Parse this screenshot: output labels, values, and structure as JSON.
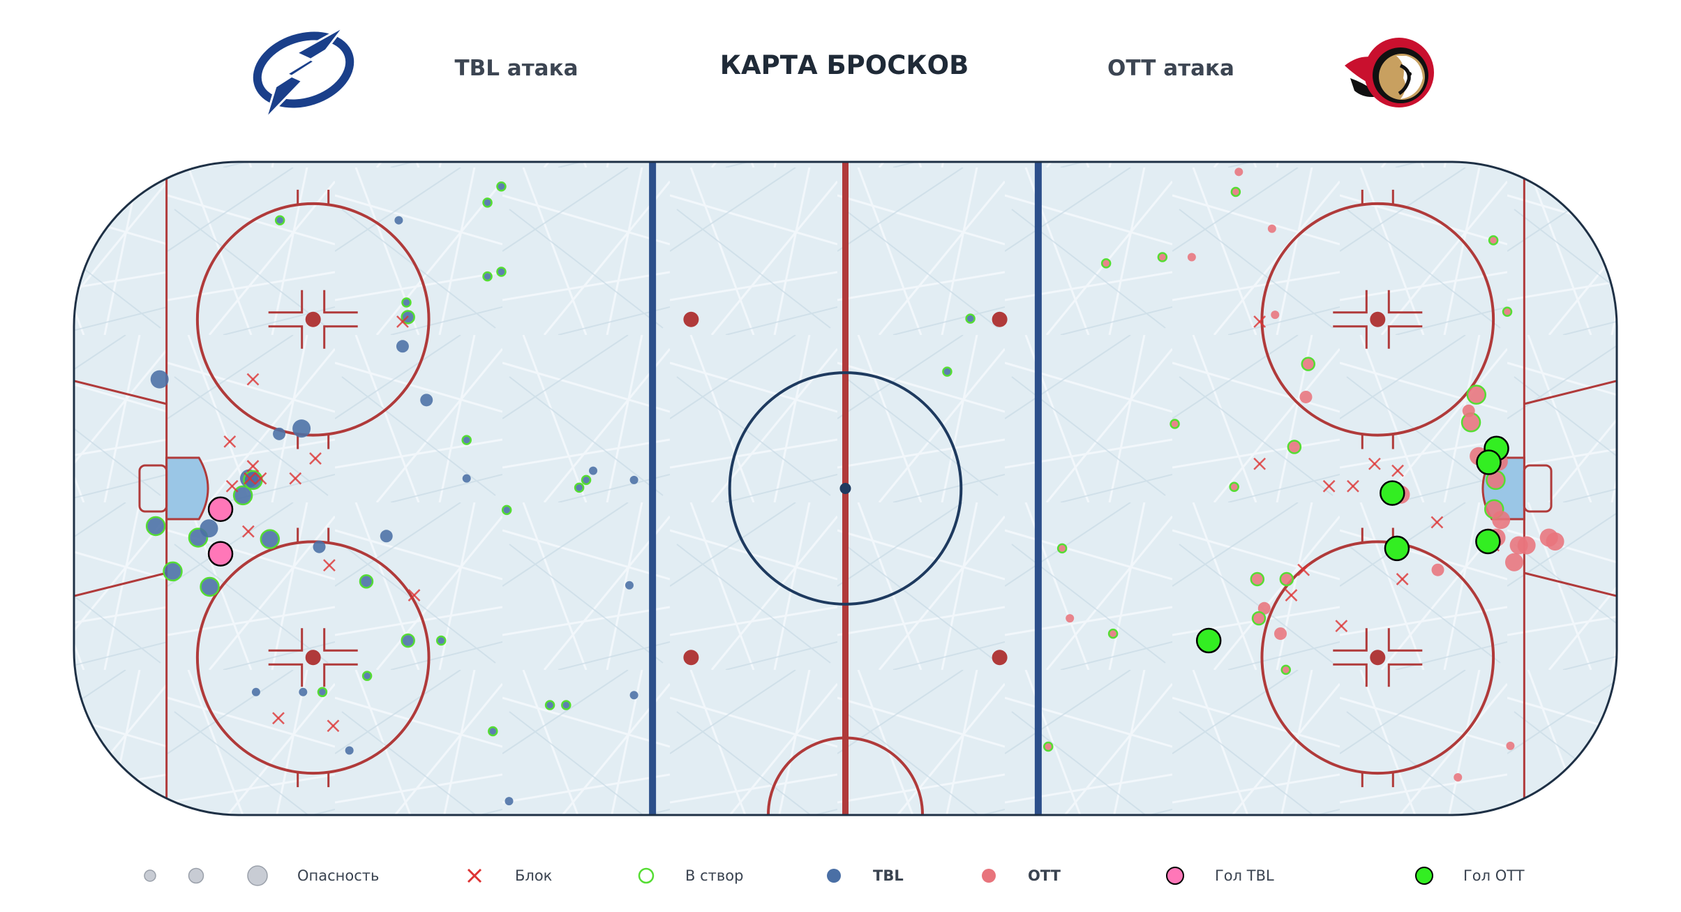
{
  "header": {
    "title": "КАРТА БРОСКОВ",
    "home_label": "TBL атака",
    "away_label": "OTT атака"
  },
  "colors": {
    "tbl": "#4a6fa5",
    "ott": "#e8747c",
    "on_target": "#55dd33",
    "block": "#dd3333",
    "goal_tbl": "#ff77b8",
    "goal_ott": "#33ee22"
  },
  "icons": {
    "home_logo": "lightning-bolt-logo",
    "away_logo": "spartan-helmet-logo"
  },
  "legend": {
    "danger": "Опасность",
    "block": "Блок",
    "on_target": "В створ",
    "tbl": "TBL",
    "ott": "OTT",
    "goal_tbl": "Гол TBL",
    "goal_ott": "Гол OTT"
  },
  "chart_data": {
    "type": "scatter",
    "title": "КАРТА БРОСКОВ",
    "xlim": [
      -100,
      100
    ],
    "ylim": [
      -42.5,
      42.5
    ],
    "xlabel": "",
    "ylabel": "",
    "grid": false,
    "legend_position": "bottom",
    "series": [
      {
        "name": "TBL",
        "color": "#4a6fa5",
        "points": [
          {
            "x": -89.4,
            "y": -4.9,
            "size": 2,
            "on_target": true
          },
          {
            "x": -87.2,
            "y": -10.8,
            "size": 2,
            "on_target": true
          },
          {
            "x": -83.9,
            "y": -6.4,
            "size": 2,
            "on_target": true
          },
          {
            "x": -82.5,
            "y": -5.2,
            "size": 2,
            "on_target": false
          },
          {
            "x": -82.4,
            "y": -12.8,
            "size": 2,
            "on_target": true
          },
          {
            "x": -78.1,
            "y": -0.9,
            "size": 2,
            "on_target": true
          },
          {
            "x": -77.3,
            "y": 1.3,
            "size": 2,
            "on_target": false
          },
          {
            "x": -76.8,
            "y": 1.1,
            "size": 2,
            "on_target": true
          },
          {
            "x": -74.6,
            "y": -6.6,
            "size": 2,
            "on_target": true
          },
          {
            "x": -73.4,
            "y": 7.1,
            "size": 1,
            "on_target": false
          },
          {
            "x": -68.2,
            "y": -7.6,
            "size": 1,
            "on_target": false
          },
          {
            "x": -67.8,
            "y": -26.5,
            "size": 0,
            "on_target": true
          },
          {
            "x": -73.3,
            "y": 34.9,
            "size": 0,
            "on_target": true
          },
          {
            "x": -70.3,
            "y": -26.5,
            "size": 0,
            "on_target": false
          },
          {
            "x": -76.4,
            "y": -26.5,
            "size": 0,
            "on_target": false
          },
          {
            "x": -70.5,
            "y": 7.8,
            "size": 2,
            "on_target": false
          },
          {
            "x": -88.9,
            "y": 14.2,
            "size": 2,
            "on_target": false
          },
          {
            "x": -59.5,
            "y": -6.2,
            "size": 1,
            "on_target": false
          },
          {
            "x": -62.0,
            "y": -24.4,
            "size": 0,
            "on_target": true
          },
          {
            "x": -64.3,
            "y": -34.1,
            "size": 0,
            "on_target": false
          },
          {
            "x": -62.1,
            "y": -12.1,
            "size": 1,
            "on_target": true
          },
          {
            "x": -56.7,
            "y": -19.8,
            "size": 1,
            "on_target": true
          },
          {
            "x": -56.7,
            "y": 22.3,
            "size": 1,
            "on_target": true
          },
          {
            "x": -56.9,
            "y": 24.2,
            "size": 0,
            "on_target": true
          },
          {
            "x": -57.4,
            "y": 18.5,
            "size": 1,
            "on_target": false
          },
          {
            "x": -54.3,
            "y": 11.5,
            "size": 1,
            "on_target": false
          },
          {
            "x": -57.9,
            "y": 34.9,
            "size": 0,
            "on_target": false
          },
          {
            "x": -52.4,
            "y": -19.8,
            "size": 0,
            "on_target": true
          },
          {
            "x": -49.1,
            "y": 6.3,
            "size": 0,
            "on_target": true
          },
          {
            "x": -49.1,
            "y": 1.3,
            "size": 0,
            "on_target": false
          },
          {
            "x": -46.4,
            "y": 27.6,
            "size": 0,
            "on_target": true
          },
          {
            "x": -44.6,
            "y": 39.3,
            "size": 0,
            "on_target": true
          },
          {
            "x": -46.4,
            "y": 37.2,
            "size": 0,
            "on_target": true
          },
          {
            "x": -44.6,
            "y": 28.2,
            "size": 0,
            "on_target": true
          },
          {
            "x": -45.7,
            "y": -31.6,
            "size": 0,
            "on_target": true
          },
          {
            "x": -43.9,
            "y": -2.8,
            "size": 0,
            "on_target": true
          },
          {
            "x": -38.3,
            "y": -28.2,
            "size": 0,
            "on_target": true
          },
          {
            "x": -36.2,
            "y": -28.2,
            "size": 0,
            "on_target": true
          },
          {
            "x": -34.5,
            "y": 0.1,
            "size": 0,
            "on_target": true
          },
          {
            "x": -33.6,
            "y": 1.1,
            "size": 0,
            "on_target": true
          },
          {
            "x": -32.7,
            "y": 2.3,
            "size": 0,
            "on_target": false
          },
          {
            "x": -28.0,
            "y": -12.6,
            "size": 0,
            "on_target": false
          },
          {
            "x": -27.4,
            "y": 1.1,
            "size": 0,
            "on_target": false
          },
          {
            "x": -27.4,
            "y": -26.9,
            "size": 0,
            "on_target": false
          },
          {
            "x": -43.6,
            "y": -40.7,
            "size": 0,
            "on_target": false
          },
          {
            "x": 16.2,
            "y": 22.1,
            "size": 0,
            "on_target": true
          },
          {
            "x": 13.2,
            "y": 15.2,
            "size": 0,
            "on_target": true
          }
        ]
      },
      {
        "name": "OTT",
        "color": "#e8747c",
        "points": [
          {
            "x": 83.4,
            "y": -6.4,
            "size": 2,
            "on_target": false
          },
          {
            "x": 84.1,
            "y": -2.7,
            "size": 2,
            "on_target": true
          },
          {
            "x": 84.3,
            "y": 1.1,
            "size": 2,
            "on_target": true
          },
          {
            "x": 84.7,
            "y": 3.5,
            "size": 2,
            "on_target": false
          },
          {
            "x": 82.1,
            "y": 4.2,
            "size": 2,
            "on_target": false
          },
          {
            "x": 81.1,
            "y": 8.6,
            "size": 2,
            "on_target": true
          },
          {
            "x": 81.8,
            "y": 12.2,
            "size": 2,
            "on_target": true
          },
          {
            "x": 80.8,
            "y": 10.1,
            "size": 1,
            "on_target": false
          },
          {
            "x": 87.3,
            "y": -7.4,
            "size": 2,
            "on_target": false
          },
          {
            "x": 86.7,
            "y": -9.6,
            "size": 2,
            "on_target": false
          },
          {
            "x": 88.3,
            "y": -7.4,
            "size": 2,
            "on_target": false
          },
          {
            "x": 85.0,
            "y": -4.1,
            "size": 2,
            "on_target": false
          },
          {
            "x": 91.2,
            "y": -6.4,
            "size": 2,
            "on_target": false
          },
          {
            "x": 92.0,
            "y": -6.9,
            "size": 2,
            "on_target": false
          },
          {
            "x": 84.4,
            "y": -6.4,
            "size": 2,
            "on_target": false
          },
          {
            "x": 72.0,
            "y": -0.8,
            "size": 2,
            "on_target": false
          },
          {
            "x": 70.3,
            "y": -0.2,
            "size": 1,
            "on_target": false
          },
          {
            "x": 76.8,
            "y": -10.6,
            "size": 1,
            "on_target": false
          },
          {
            "x": 60.0,
            "y": 16.2,
            "size": 1,
            "on_target": true
          },
          {
            "x": 59.7,
            "y": 11.9,
            "size": 1,
            "on_target": false
          },
          {
            "x": 58.2,
            "y": 5.4,
            "size": 1,
            "on_target": true
          },
          {
            "x": 53.4,
            "y": -11.8,
            "size": 1,
            "on_target": true
          },
          {
            "x": 57.2,
            "y": -11.8,
            "size": 1,
            "on_target": true
          },
          {
            "x": 54.3,
            "y": -15.6,
            "size": 1,
            "on_target": false
          },
          {
            "x": 53.6,
            "y": -16.9,
            "size": 1,
            "on_target": true
          },
          {
            "x": 56.4,
            "y": -18.9,
            "size": 1,
            "on_target": false
          },
          {
            "x": 57.1,
            "y": -23.6,
            "size": 0,
            "on_target": true
          },
          {
            "x": 55.3,
            "y": 33.8,
            "size": 0,
            "on_target": false
          },
          {
            "x": 55.7,
            "y": 22.6,
            "size": 0,
            "on_target": false
          },
          {
            "x": 51.0,
            "y": 41.2,
            "size": 0,
            "on_target": false
          },
          {
            "x": 50.6,
            "y": 38.6,
            "size": 0,
            "on_target": true
          },
          {
            "x": 44.9,
            "y": 30.1,
            "size": 0,
            "on_target": false
          },
          {
            "x": 41.1,
            "y": 30.1,
            "size": 0,
            "on_target": true
          },
          {
            "x": 33.8,
            "y": 29.3,
            "size": 0,
            "on_target": true
          },
          {
            "x": 42.7,
            "y": 8.4,
            "size": 0,
            "on_target": true
          },
          {
            "x": 50.4,
            "y": 0.2,
            "size": 0,
            "on_target": true
          },
          {
            "x": 28.1,
            "y": -7.8,
            "size": 0,
            "on_target": true
          },
          {
            "x": 29.1,
            "y": -16.9,
            "size": 0,
            "on_target": false
          },
          {
            "x": 34.7,
            "y": -18.9,
            "size": 0,
            "on_target": true
          },
          {
            "x": 26.3,
            "y": -33.6,
            "size": 0,
            "on_target": true
          },
          {
            "x": 84.0,
            "y": 32.3,
            "size": 0,
            "on_target": true
          },
          {
            "x": 85.8,
            "y": 23.0,
            "size": 0,
            "on_target": true
          },
          {
            "x": 86.2,
            "y": -33.5,
            "size": 0,
            "on_target": false
          },
          {
            "x": 79.4,
            "y": -37.6,
            "size": 0,
            "on_target": false
          }
        ]
      },
      {
        "name": "Блок",
        "color": "#dd3333",
        "points": [
          {
            "x": -77.4,
            "y": -5.6,
            "team": "TBL"
          },
          {
            "x": -79.5,
            "y": 0.3,
            "team": "TBL"
          },
          {
            "x": -77.2,
            "y": 1.3,
            "team": "TBL"
          },
          {
            "x": -76.8,
            "y": 2.9,
            "team": "TBL"
          },
          {
            "x": -75.8,
            "y": 1.3,
            "team": "TBL"
          },
          {
            "x": -71.3,
            "y": 1.3,
            "team": "TBL"
          },
          {
            "x": -79.8,
            "y": 6.1,
            "team": "TBL"
          },
          {
            "x": -76.8,
            "y": 14.2,
            "team": "TBL"
          },
          {
            "x": -68.7,
            "y": 3.9,
            "team": "TBL"
          },
          {
            "x": -57.4,
            "y": 21.7,
            "team": "TBL"
          },
          {
            "x": -66.9,
            "y": -10.0,
            "team": "TBL"
          },
          {
            "x": -55.9,
            "y": -13.9,
            "team": "TBL"
          },
          {
            "x": -73.5,
            "y": -29.9,
            "team": "TBL"
          },
          {
            "x": -66.4,
            "y": -30.9,
            "team": "TBL"
          },
          {
            "x": 53.7,
            "y": 21.7,
            "team": "OTT"
          },
          {
            "x": 53.7,
            "y": 3.2,
            "team": "OTT"
          },
          {
            "x": 62.7,
            "y": 0.3,
            "team": "OTT"
          },
          {
            "x": 65.8,
            "y": 0.3,
            "team": "OTT"
          },
          {
            "x": 68.6,
            "y": 3.2,
            "team": "OTT"
          },
          {
            "x": 71.6,
            "y": 2.3,
            "team": "OTT"
          },
          {
            "x": 76.7,
            "y": -4.4,
            "team": "OTT"
          },
          {
            "x": 72.2,
            "y": -11.8,
            "team": "OTT"
          },
          {
            "x": 59.4,
            "y": -10.6,
            "team": "OTT"
          },
          {
            "x": 57.8,
            "y": -13.9,
            "team": "OTT"
          },
          {
            "x": 64.3,
            "y": -17.9,
            "team": "OTT"
          },
          {
            "x": 84.0,
            "y": -7.4,
            "team": "OTT"
          },
          {
            "x": 83.7,
            "y": -6.4,
            "team": "OTT"
          }
        ]
      },
      {
        "name": "Гол TBL",
        "color": "#ff77b8",
        "points": [
          {
            "x": -81.0,
            "y": -2.7
          },
          {
            "x": -81.0,
            "y": -8.5
          }
        ]
      },
      {
        "name": "Гол OTT",
        "color": "#33ee22",
        "points": [
          {
            "x": 84.4,
            "y": 5.2
          },
          {
            "x": 83.4,
            "y": 3.4
          },
          {
            "x": 70.9,
            "y": -0.6
          },
          {
            "x": 71.5,
            "y": -7.8
          },
          {
            "x": 83.3,
            "y": -6.9
          },
          {
            "x": 47.1,
            "y": -19.8
          }
        ]
      }
    ]
  }
}
